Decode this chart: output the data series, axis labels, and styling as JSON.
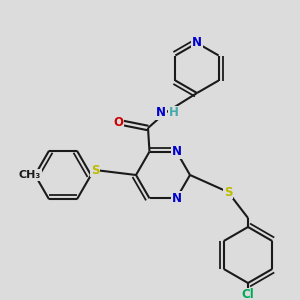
{
  "bg_color": "#dcdcdc",
  "bond_color": "#1a1a1a",
  "bond_width": 1.5,
  "dbo": 0.012,
  "atom_colors": {
    "N": "#0000cc",
    "O": "#cc0000",
    "S": "#bbbb00",
    "Cl": "#00aa55",
    "C": "#1a1a1a",
    "H": "#44aaaa"
  },
  "fs": 8.5
}
